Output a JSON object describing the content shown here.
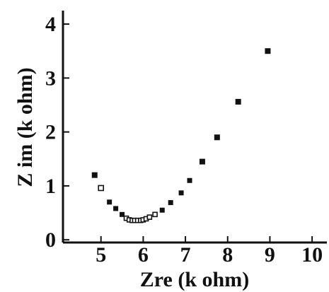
{
  "chart_data": {
    "type": "scatter",
    "title": "",
    "xlabel": "Zre (k ohm)",
    "ylabel": "Z im (k ohm)",
    "xlim": [
      4.1,
      10.35
    ],
    "ylim": [
      -0.05,
      4.25
    ],
    "xticks": [
      5,
      6,
      7,
      8,
      9,
      10
    ],
    "yticks": [
      0,
      1,
      2,
      3,
      4
    ],
    "x_tick_labels": [
      "5",
      "6",
      "7",
      "8",
      "9",
      "10"
    ],
    "y_tick_labels": [
      "0",
      "1",
      "2",
      "3",
      "4"
    ],
    "grid": false,
    "marker_color": "#111111",
    "series": [
      {
        "points": [
          [
            4.85,
            1.2
          ],
          [
            5.0,
            0.96
          ],
          [
            5.2,
            0.7
          ],
          [
            5.35,
            0.58
          ],
          [
            5.5,
            0.47
          ],
          [
            5.6,
            0.4
          ],
          [
            5.67,
            0.37
          ],
          [
            5.74,
            0.36
          ],
          [
            5.8,
            0.36
          ],
          [
            5.87,
            0.36
          ],
          [
            5.94,
            0.36
          ],
          [
            6.0,
            0.37
          ],
          [
            6.07,
            0.39
          ],
          [
            6.15,
            0.42
          ],
          [
            6.28,
            0.47
          ],
          [
            6.45,
            0.55
          ],
          [
            6.65,
            0.69
          ],
          [
            6.9,
            0.87
          ],
          [
            7.1,
            1.1
          ],
          [
            7.4,
            1.45
          ],
          [
            7.75,
            1.9
          ],
          [
            8.25,
            2.56
          ],
          [
            8.95,
            3.5
          ]
        ]
      }
    ]
  }
}
